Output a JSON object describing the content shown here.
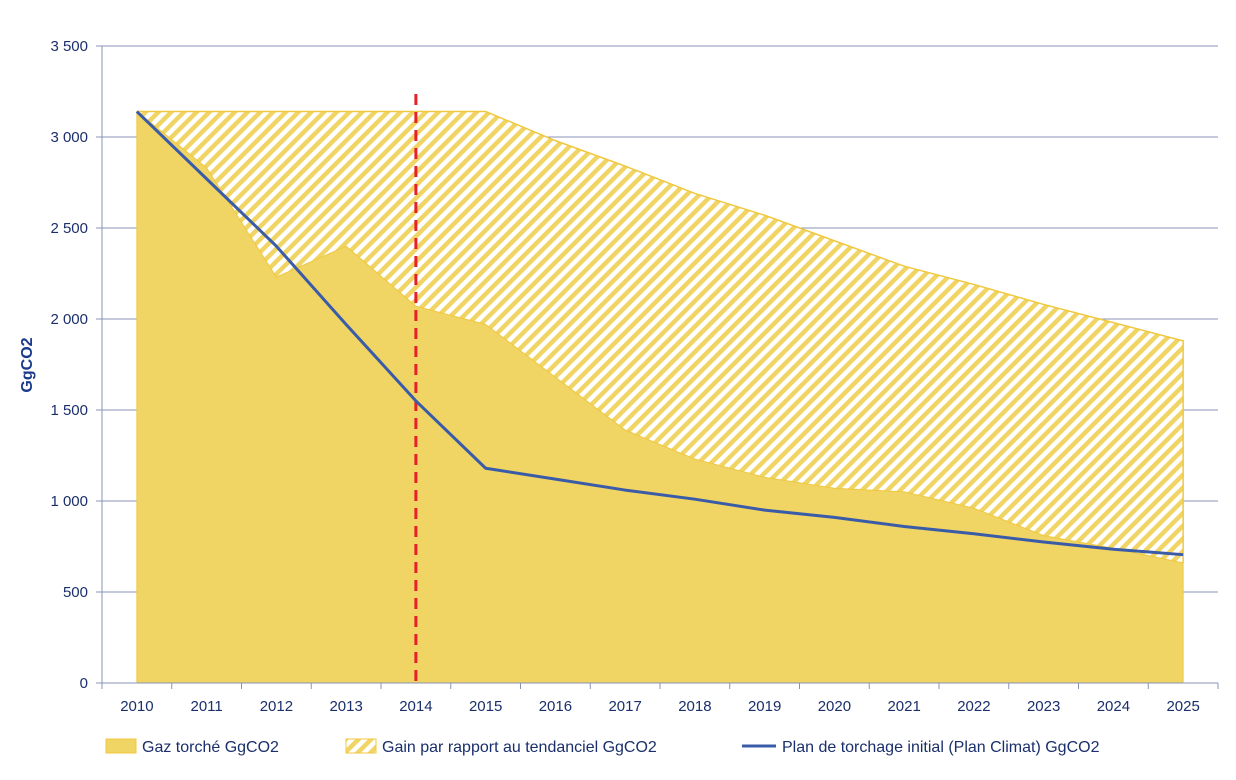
{
  "chart_data": {
    "type": "area",
    "ylabel": "GgCO2",
    "ylim": [
      0,
      3500
    ],
    "yticks": [
      0,
      500,
      1000,
      1500,
      2000,
      2500,
      3000,
      3500
    ],
    "ytick_labels": [
      "0",
      "500",
      "1 000",
      "1 500",
      "2 000",
      "2 500",
      "3 000",
      "3 500"
    ],
    "grid": "horizontal",
    "legend_position": "bottom",
    "categories": [
      "2010",
      "2011",
      "2012",
      "2013",
      "2014",
      "2015",
      "2016",
      "2017",
      "2018",
      "2019",
      "2020",
      "2021",
      "2022",
      "2023",
      "2024",
      "2025"
    ],
    "marker_line": {
      "x": "2014",
      "style": "dashed",
      "color": "#e8202a"
    },
    "series": [
      {
        "name": "Gaz torché GgCO2",
        "kind": "area",
        "color": "#f0d464",
        "values": [
          3140,
          2830,
          2230,
          2400,
          2070,
          1970,
          1680,
          1390,
          1230,
          1130,
          1070,
          1050,
          960,
          810,
          740,
          660
        ]
      },
      {
        "name": "Gain par rapport au tendanciel GgCO2",
        "kind": "hatched-area",
        "color": "#f0d464",
        "top_values": [
          3140,
          3140,
          3140,
          3140,
          3140,
          3140,
          2980,
          2840,
          2690,
          2570,
          2430,
          2290,
          2190,
          2080,
          1980,
          1880
        ]
      },
      {
        "name": "Plan de torchage initial (Plan Climat) GgCO2",
        "kind": "line",
        "color": "#3a5ca8",
        "values": [
          3140,
          2770,
          2400,
          1970,
          1550,
          1180,
          1120,
          1060,
          1010,
          950,
          910,
          860,
          820,
          775,
          735,
          705
        ]
      }
    ]
  }
}
